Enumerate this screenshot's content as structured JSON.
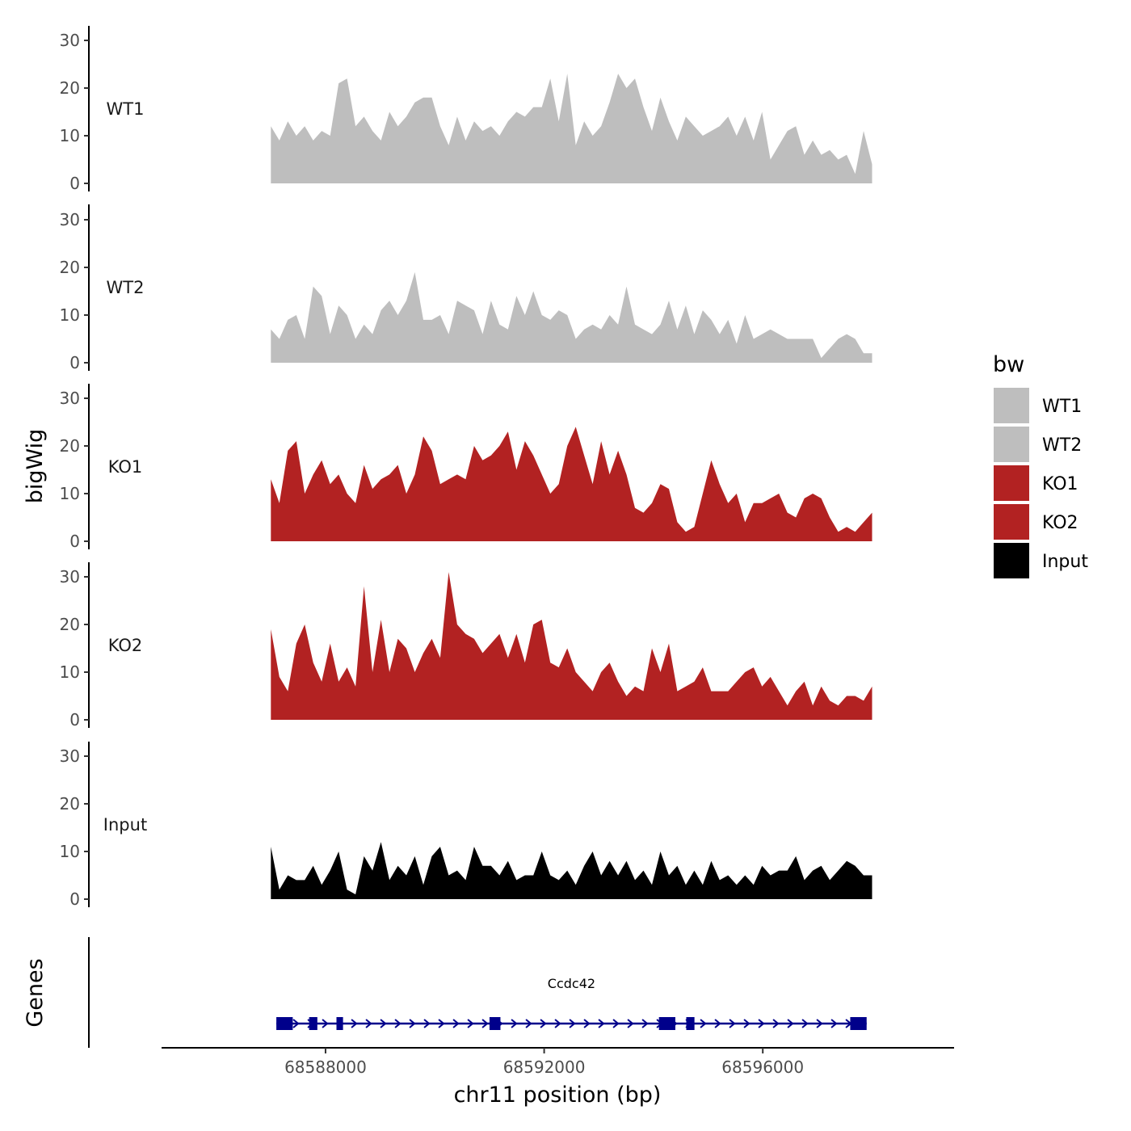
{
  "chart_data": {
    "type": "area",
    "title": "",
    "ylabel": "bigWig",
    "xlabel": "chr11 position (bp)",
    "genes_label": "Genes",
    "xlim": [
      68585000,
      68599500
    ],
    "region": [
      68587000,
      68598000
    ],
    "x_ticks": [
      68588000,
      68592000,
      68596000
    ],
    "x_tick_labels": [
      "68588000",
      "68592000",
      "68596000"
    ],
    "ylim": [
      0,
      31
    ],
    "y_ticks": [
      0,
      10,
      20,
      30
    ],
    "y_tick_labels": [
      "0",
      "10",
      "20",
      "30"
    ],
    "legend": {
      "title": "bw",
      "entries": [
        {
          "label": "WT1",
          "color": "#BEBEBE"
        },
        {
          "label": "WT2",
          "color": "#BEBEBE"
        },
        {
          "label": "KO1",
          "color": "#B22222"
        },
        {
          "label": "KO2",
          "color": "#B22222"
        },
        {
          "label": "Input",
          "color": "#000000"
        }
      ]
    },
    "series": [
      {
        "name": "WT1",
        "color": "#BEBEBE",
        "values": [
          12,
          9,
          13,
          10,
          12,
          9,
          11,
          10,
          21,
          22,
          12,
          14,
          11,
          9,
          15,
          12,
          14,
          17,
          18,
          18,
          12,
          8,
          14,
          9,
          13,
          11,
          12,
          10,
          13,
          15,
          14,
          16,
          16,
          22,
          13,
          23,
          8,
          13,
          10,
          12,
          17,
          23,
          20,
          22,
          16,
          11,
          18,
          13,
          9,
          14,
          12,
          10,
          11,
          12,
          14,
          10,
          14,
          9,
          15,
          5,
          8,
          11,
          12,
          6,
          9,
          6,
          7,
          5,
          6,
          2,
          11,
          4
        ]
      },
      {
        "name": "WT2",
        "color": "#BEBEBE",
        "values": [
          7,
          5,
          9,
          10,
          5,
          16,
          14,
          6,
          12,
          10,
          5,
          8,
          6,
          11,
          13,
          10,
          13,
          19,
          9,
          9,
          10,
          6,
          13,
          12,
          11,
          6,
          13,
          8,
          7,
          14,
          10,
          15,
          10,
          9,
          11,
          10,
          5,
          7,
          8,
          7,
          10,
          8,
          16,
          8,
          7,
          6,
          8,
          13,
          7,
          12,
          6,
          11,
          9,
          6,
          9,
          4,
          10,
          5,
          6,
          7,
          6,
          5,
          5,
          5,
          5,
          1,
          3,
          5,
          6,
          5,
          2,
          2
        ]
      },
      {
        "name": "KO1",
        "color": "#B22222",
        "values": [
          13,
          8,
          19,
          21,
          10,
          14,
          17,
          12,
          14,
          10,
          8,
          16,
          11,
          13,
          14,
          16,
          10,
          14,
          22,
          19,
          12,
          13,
          14,
          13,
          20,
          17,
          18,
          20,
          23,
          15,
          21,
          18,
          14,
          10,
          12,
          20,
          24,
          18,
          12,
          21,
          14,
          19,
          14,
          7,
          6,
          8,
          12,
          11,
          4,
          2,
          3,
          10,
          17,
          12,
          8,
          10,
          4,
          8,
          8,
          9,
          10,
          6,
          5,
          9,
          10,
          9,
          5,
          2,
          3,
          2,
          4,
          6
        ]
      },
      {
        "name": "KO2",
        "color": "#B22222",
        "values": [
          19,
          9,
          6,
          16,
          20,
          12,
          8,
          16,
          8,
          11,
          7,
          28,
          10,
          21,
          10,
          17,
          15,
          10,
          14,
          17,
          13,
          31,
          20,
          18,
          17,
          14,
          16,
          18,
          13,
          18,
          12,
          20,
          21,
          12,
          11,
          15,
          10,
          8,
          6,
          10,
          12,
          8,
          5,
          7,
          6,
          15,
          10,
          16,
          6,
          7,
          8,
          11,
          6,
          6,
          6,
          8,
          10,
          11,
          7,
          9,
          6,
          3,
          6,
          8,
          3,
          7,
          4,
          3,
          5,
          5,
          4,
          7
        ]
      },
      {
        "name": "Input",
        "color": "#000000",
        "values": [
          11,
          2,
          5,
          4,
          4,
          7,
          3,
          6,
          10,
          2,
          1,
          9,
          6,
          12,
          4,
          7,
          5,
          9,
          3,
          9,
          11,
          5,
          6,
          4,
          11,
          7,
          7,
          5,
          8,
          4,
          5,
          5,
          10,
          5,
          4,
          6,
          3,
          7,
          10,
          5,
          8,
          5,
          8,
          4,
          6,
          3,
          10,
          5,
          7,
          3,
          6,
          3,
          8,
          4,
          5,
          3,
          5,
          3,
          7,
          5,
          6,
          6,
          9,
          4,
          6,
          7,
          4,
          6,
          8,
          7,
          5,
          5
        ]
      }
    ],
    "gene_track": {
      "gene_name": "Ccdc42",
      "start": 68587100,
      "end": 68597900,
      "strand": "+",
      "color": "#00008B",
      "exons": [
        {
          "start": 68587100,
          "end": 68587400
        },
        {
          "start": 68587700,
          "end": 68587850
        },
        {
          "start": 68588200,
          "end": 68588320
        },
        {
          "start": 68591000,
          "end": 68591200
        },
        {
          "start": 68594100,
          "end": 68594400
        },
        {
          "start": 68594600,
          "end": 68594750
        },
        {
          "start": 68597600,
          "end": 68597900
        }
      ]
    }
  }
}
